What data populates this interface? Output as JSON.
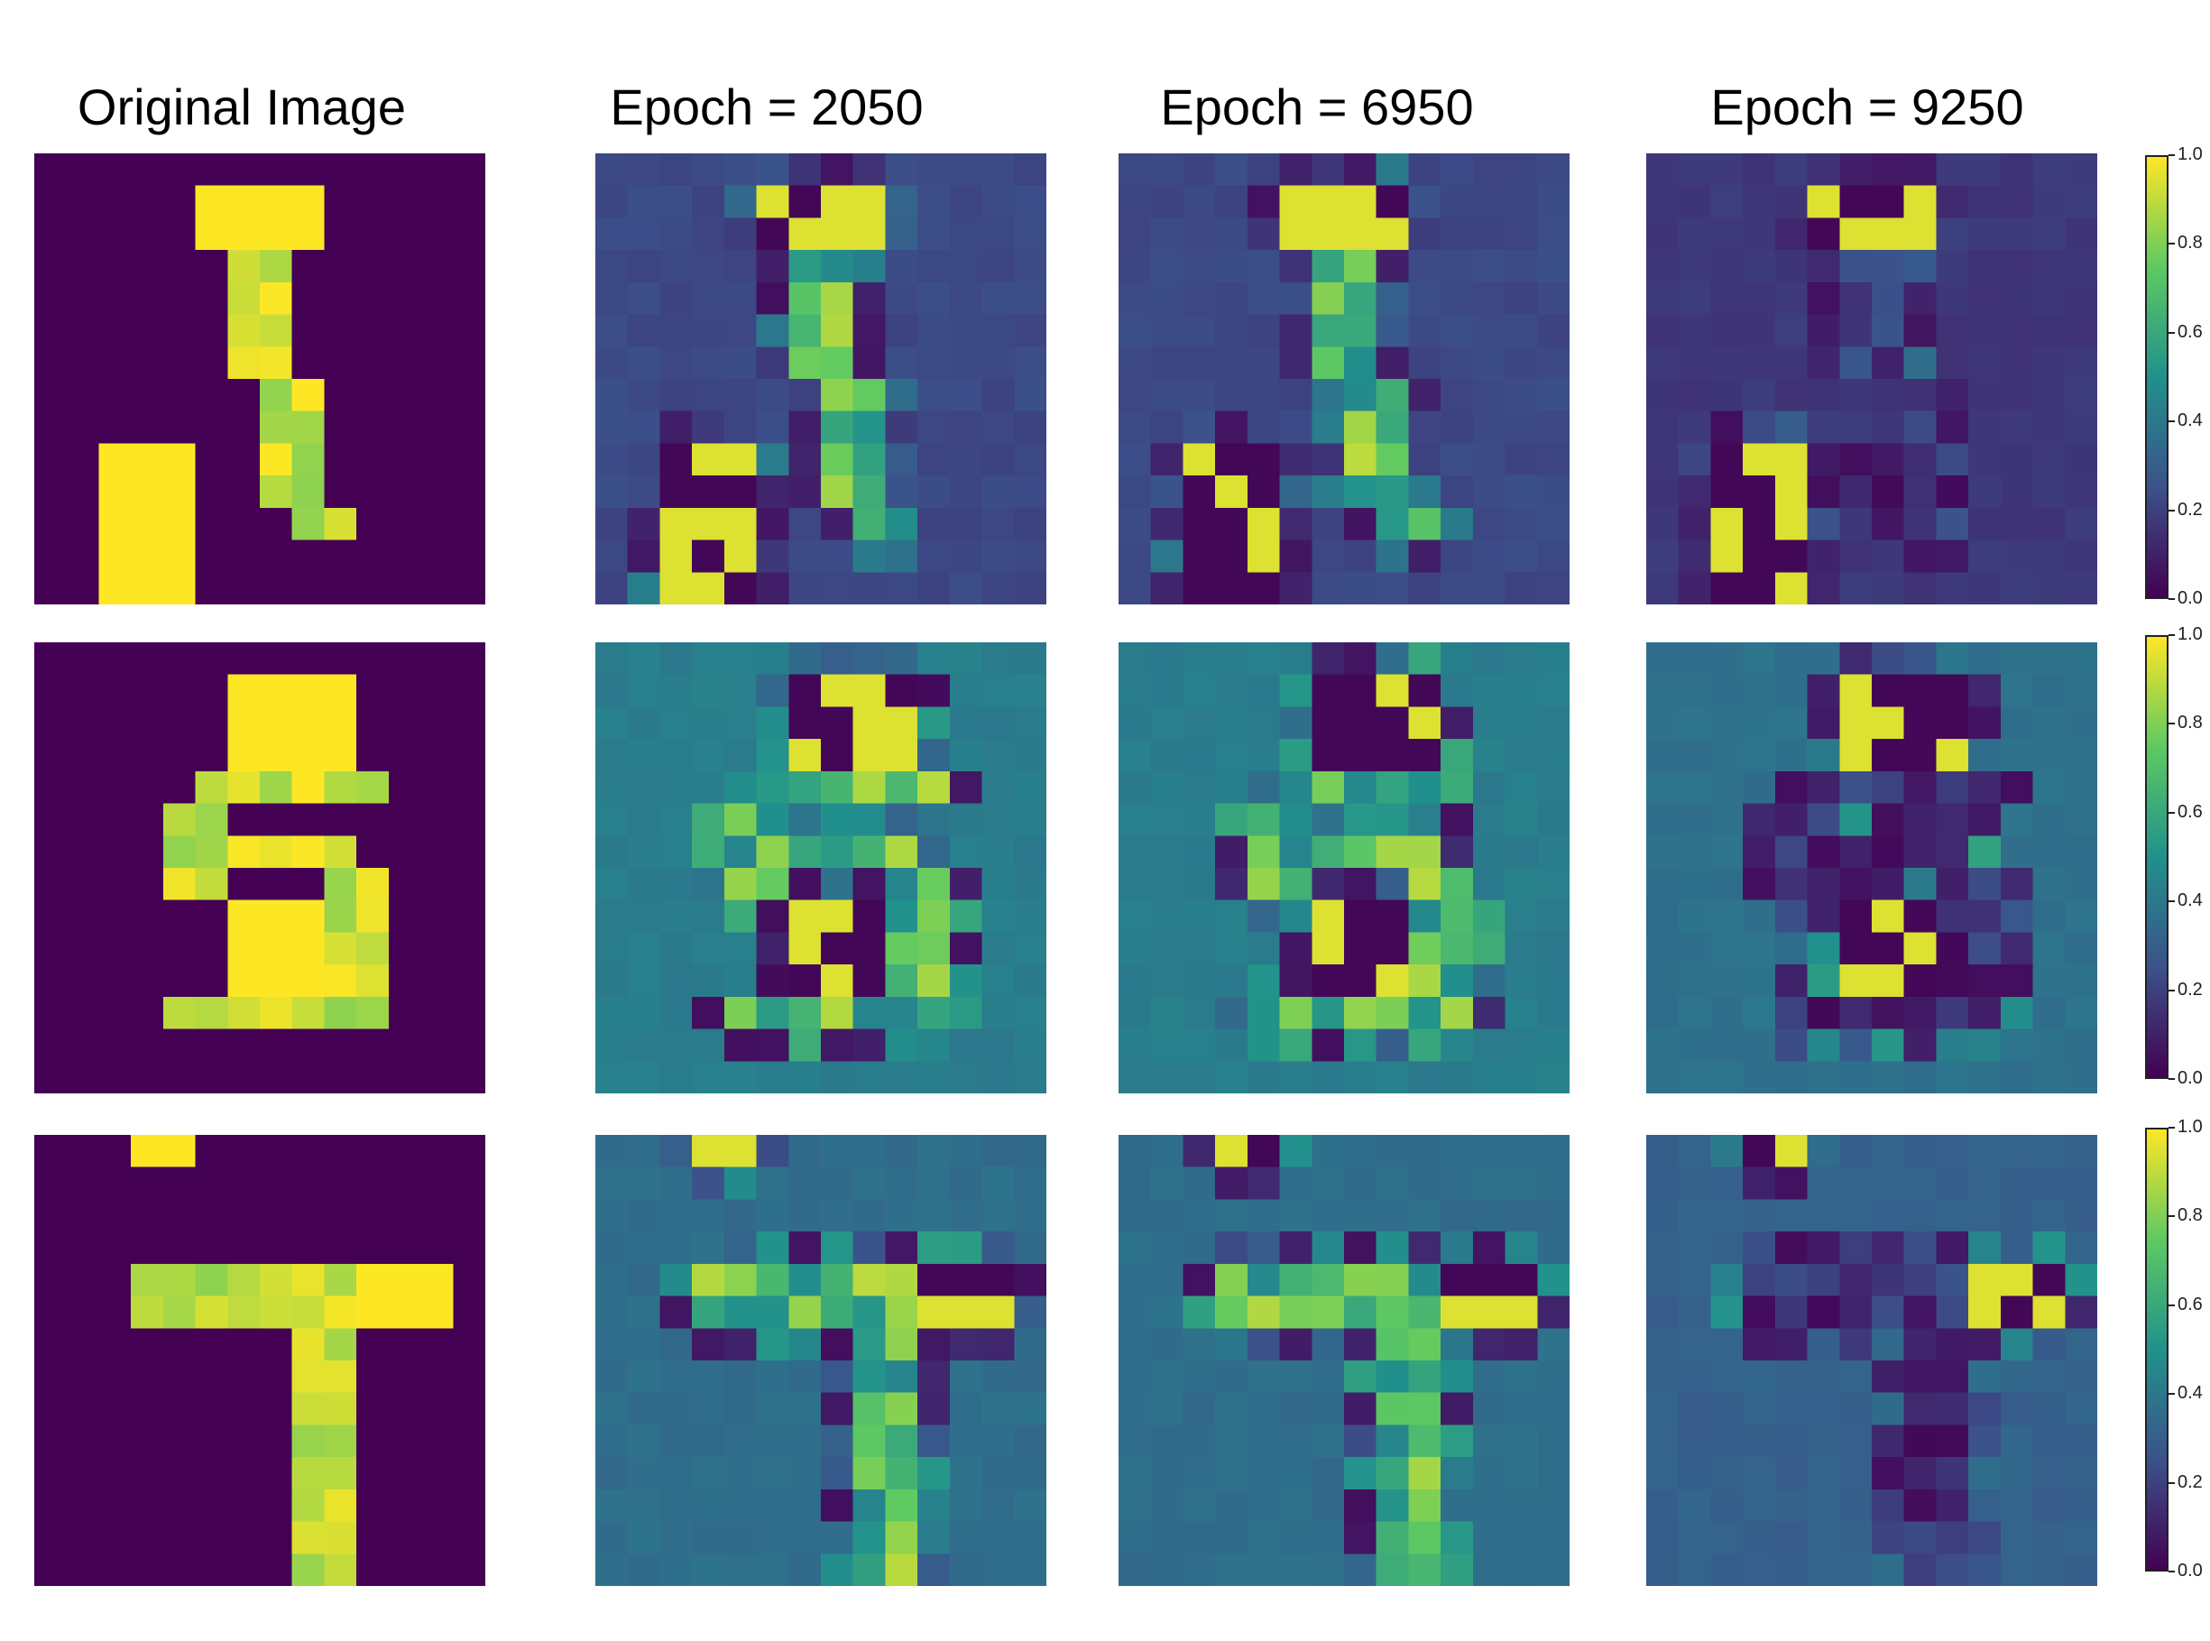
{
  "chart_data": {
    "type": "heatmap",
    "title": "",
    "column_titles": [
      "Original Image",
      "Epoch = 2050",
      "Epoch = 6950",
      "Epoch = 9250"
    ],
    "rows": [
      {
        "digit": "1",
        "shared_colorbar": true
      },
      {
        "digit": "5",
        "shared_colorbar": true
      },
      {
        "digit": "7",
        "shared_colorbar": true
      }
    ],
    "colormap": "viridis",
    "color_stops": [
      "#440154",
      "#3b528b",
      "#21918c",
      "#5ec962",
      "#fde725"
    ],
    "colorbar_range": [
      0.0,
      1.0
    ],
    "colorbar_ticks": [
      "0.0",
      "0.2",
      "0.4",
      "0.6",
      "0.8",
      "1.0"
    ],
    "grid_size": 14
  }
}
